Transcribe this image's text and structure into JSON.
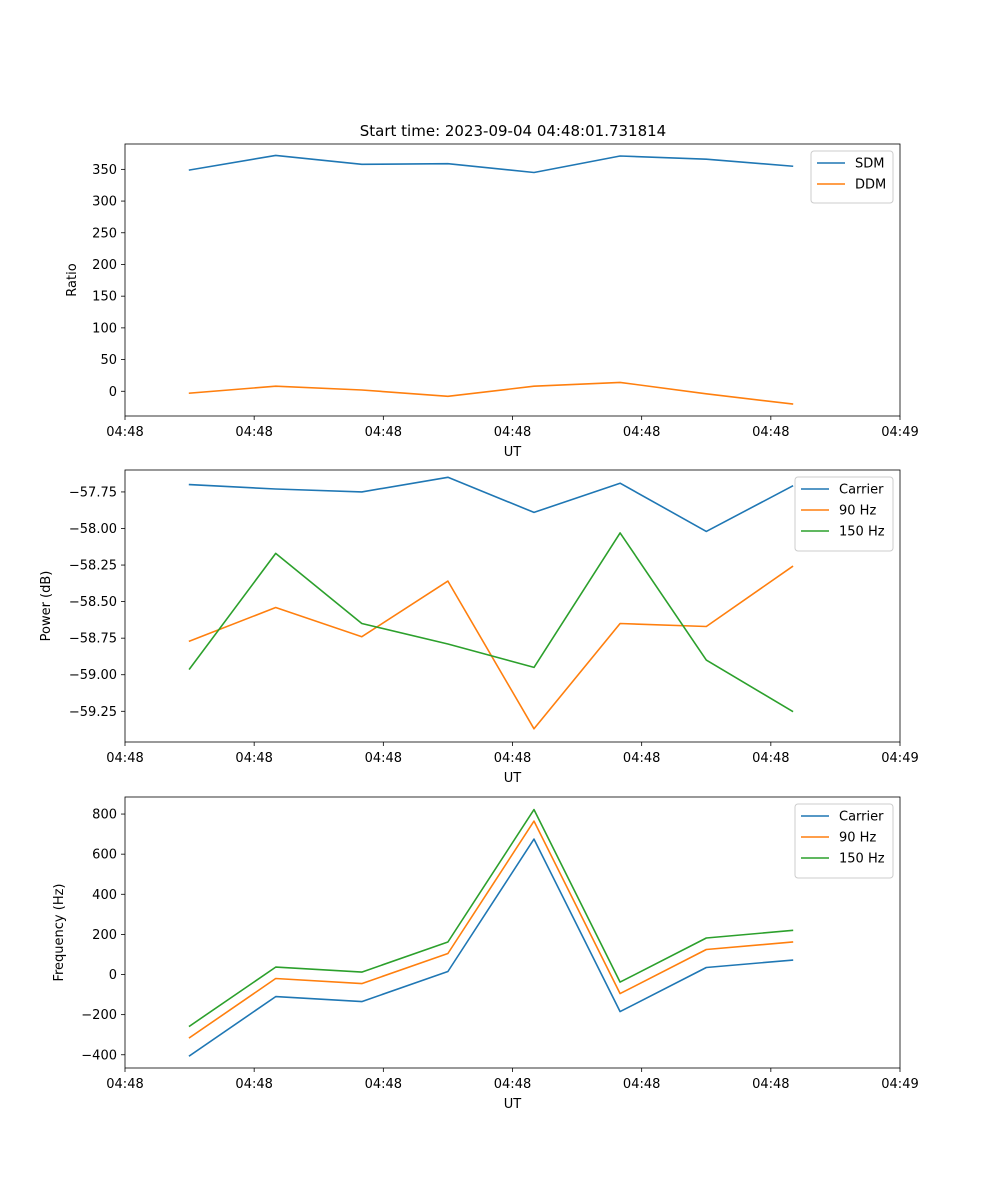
{
  "figure": {
    "title": "Start time: 2023-09-04 04:48:01.731814"
  },
  "chart_data": [
    {
      "type": "line",
      "title": "Start time: 2023-09-04 04:48:01.731814",
      "xlabel": "UT",
      "ylabel": "Ratio",
      "x": [
        1,
        2,
        3,
        4,
        5,
        6,
        7,
        8
      ],
      "xlim": [
        0.25,
        9.25
      ],
      "xticks": [
        0.25,
        1.75,
        3.25,
        4.75,
        6.25,
        7.75,
        9.25
      ],
      "xtick_labels": [
        "04:48",
        "04:48",
        "04:48",
        "04:48",
        "04:48",
        "04:48",
        "04:49"
      ],
      "ylim": [
        -39,
        390
      ],
      "yticks": [
        0,
        50,
        100,
        150,
        200,
        250,
        300,
        350
      ],
      "ytick_labels": [
        "0",
        "50",
        "100",
        "150",
        "200",
        "250",
        "300",
        "350"
      ],
      "legend": "top-right",
      "series": [
        {
          "name": "SDM",
          "color": "#1f77b4",
          "values": [
            349,
            372,
            358,
            359,
            345,
            371,
            366,
            355
          ]
        },
        {
          "name": "DDM",
          "color": "#ff7f0e",
          "values": [
            -3,
            8,
            2,
            -8,
            8,
            14,
            -4,
            -20
          ]
        }
      ]
    },
    {
      "type": "line",
      "xlabel": "UT",
      "ylabel": "Power (dB)",
      "x": [
        1,
        2,
        3,
        4,
        5,
        6,
        7,
        8
      ],
      "xlim": [
        0.25,
        9.25
      ],
      "xticks": [
        0.25,
        1.75,
        3.25,
        4.75,
        6.25,
        7.75,
        9.25
      ],
      "xtick_labels": [
        "04:48",
        "04:48",
        "04:48",
        "04:48",
        "04:48",
        "04:48",
        "04:49"
      ],
      "ylim": [
        -59.46,
        -57.6
      ],
      "yticks": [
        -59.25,
        -59.0,
        -58.75,
        -58.5,
        -58.25,
        -58.0,
        -57.75
      ],
      "ytick_labels": [
        "−59.25",
        "−59.00",
        "−58.75",
        "−58.50",
        "−58.25",
        "−58.00",
        "−57.75"
      ],
      "legend": "top-right",
      "series": [
        {
          "name": "Carrier",
          "color": "#1f77b4",
          "values": [
            -57.7,
            -57.73,
            -57.75,
            -57.65,
            -57.89,
            -57.69,
            -58.02,
            -57.71
          ]
        },
        {
          "name": "90 Hz",
          "color": "#ff7f0e",
          "values": [
            -58.77,
            -58.54,
            -58.74,
            -58.36,
            -59.37,
            -58.65,
            -58.67,
            -58.26
          ]
        },
        {
          "name": "150 Hz",
          "color": "#2ca02c",
          "values": [
            -58.96,
            -58.17,
            -58.65,
            -58.79,
            -58.95,
            -58.03,
            -58.9,
            -59.25
          ]
        }
      ]
    },
    {
      "type": "line",
      "xlabel": "UT",
      "ylabel": "Frequency (Hz)",
      "x": [
        1,
        2,
        3,
        4,
        5,
        6,
        7,
        8
      ],
      "xlim": [
        0.25,
        9.25
      ],
      "xticks": [
        0.25,
        1.75,
        3.25,
        4.75,
        6.25,
        7.75,
        9.25
      ],
      "xtick_labels": [
        "04:48",
        "04:48",
        "04:48",
        "04:48",
        "04:48",
        "04:48",
        "04:49"
      ],
      "ylim": [
        -466,
        885
      ],
      "yticks": [
        -400,
        -200,
        0,
        200,
        400,
        600,
        800
      ],
      "ytick_labels": [
        "−400",
        "−200",
        "0",
        "200",
        "400",
        "600",
        "800"
      ],
      "legend": "top-right",
      "series": [
        {
          "name": "Carrier",
          "color": "#1f77b4",
          "values": [
            -405,
            -110,
            -135,
            15,
            675,
            -185,
            35,
            72
          ]
        },
        {
          "name": "90 Hz",
          "color": "#ff7f0e",
          "values": [
            -315,
            -20,
            -45,
            105,
            765,
            -95,
            125,
            162
          ]
        },
        {
          "name": "150 Hz",
          "color": "#2ca02c",
          "values": [
            -257,
            37,
            12,
            162,
            822,
            -38,
            182,
            220
          ]
        }
      ]
    }
  ]
}
